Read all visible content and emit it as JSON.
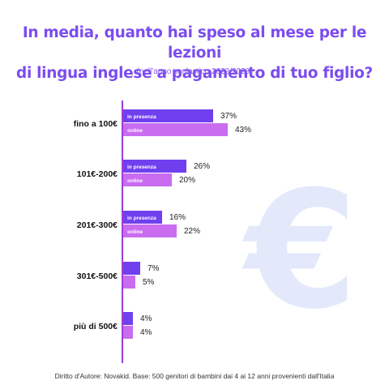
{
  "title_line1": "In media, quanto hai speso al mese per le lezioni",
  "title_line2": "di lingua inglese a pagamento di tuo figlio?",
  "subtitle": "(nell'anno scolastico 2022/2023)",
  "footer": "Diritto d'Autore: Novakid. Base: 500 genitori di bambini dai 4 ai 12 anni provenienti dall'Italia",
  "colors": {
    "in_presenza": "#7040ef",
    "online": "#c96cf0",
    "axis": "#9b3fd6",
    "title": "#7b4cf0",
    "euro": "#e3e9fb"
  },
  "decor": {
    "euro_icon": "euro-sign-icon"
  },
  "chart_data": {
    "type": "bar",
    "orientation": "horizontal",
    "categories": [
      "fino a 100€",
      "101€-200€",
      "201€-300€",
      "301€-500€",
      "più di 500€"
    ],
    "series": [
      {
        "name": "in presenza",
        "values": [
          37,
          26,
          16,
          7,
          4
        ],
        "value_labels": [
          "37%",
          "26%",
          "16%",
          "7%",
          "4%"
        ]
      },
      {
        "name": "online",
        "values": [
          43,
          20,
          22,
          5,
          4
        ],
        "value_labels": [
          "43%",
          "20%",
          "22%",
          "5%",
          "4%"
        ]
      }
    ],
    "inline_series_labels_on": [
      "fino a 100€",
      "101€-200€",
      "201€-300€"
    ],
    "unit": "%",
    "xlim": [
      0,
      43
    ],
    "grid": false,
    "legend": "none"
  }
}
